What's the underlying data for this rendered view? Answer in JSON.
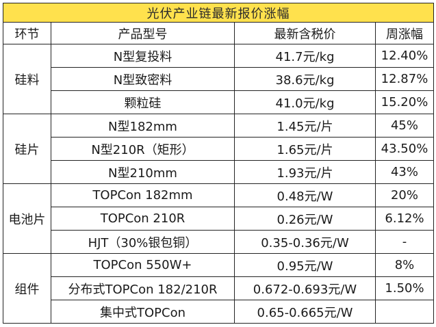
{
  "title": "光伏产业链最新报价涨幅",
  "headers": [
    "环节",
    "产品型号",
    "最新含税价",
    "周涨幅"
  ],
  "groups": [
    {
      "segment": "硅料",
      "rows": [
        {
          "product": "N型复投料",
          "price": "41.7元/kg",
          "change": "12.40%"
        },
        {
          "product": "N型致密料",
          "price": "38.6元/kg",
          "change": "12.87%"
        },
        {
          "product": "颗粒硅",
          "price": "41.0元/kg",
          "change": "15.20%"
        }
      ]
    },
    {
      "segment": "硅片",
      "rows": [
        {
          "product": "N型182mm",
          "price": "1.45元/片",
          "change": "45%"
        },
        {
          "product": "N型210R（矩形）",
          "price": "1.65元/片",
          "change": "43.50%"
        },
        {
          "product": "N型210mm",
          "price": "1.93元/片",
          "change": "43%"
        }
      ]
    },
    {
      "segment": "电池片",
      "rows": [
        {
          "product": "TOPCon 182mm",
          "price": "0.48元/W",
          "change": "20%"
        },
        {
          "product": "TOPCon 210R",
          "price": "0.26元/W",
          "change": "6.12%"
        },
        {
          "product": "HJT（30%银包铜）",
          "price": "0.35-0.36元/W",
          "change": "-"
        }
      ]
    },
    {
      "segment": "组件",
      "rows": [
        {
          "product": "TOPCon 550W+",
          "price": "0.95元/W",
          "change": "8%"
        },
        {
          "product": "分布式TOPCon 182/210R",
          "price": "0.672-0.693元/W",
          "change": "1.50%"
        },
        {
          "product": "集中式TOPCon",
          "price": "0.65-0.665元/W",
          "change": ""
        }
      ]
    }
  ]
}
